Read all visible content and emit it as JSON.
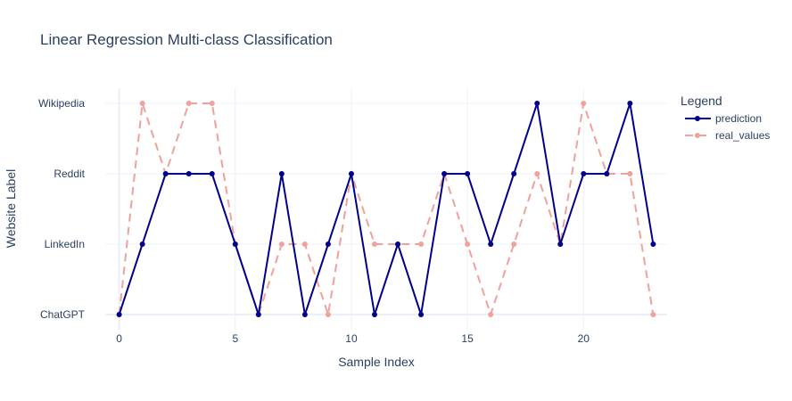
{
  "chart_data": {
    "type": "line",
    "title": "Linear Regression Multi-class Classification",
    "xlabel": "Sample Index",
    "ylabel": "Website Label",
    "x": [
      0,
      1,
      2,
      3,
      4,
      5,
      6,
      7,
      8,
      9,
      10,
      11,
      12,
      13,
      14,
      15,
      16,
      17,
      18,
      19,
      20,
      21,
      22,
      23
    ],
    "xlim": [
      -0.6,
      23.6
    ],
    "x_ticks": [
      0,
      5,
      10,
      15,
      20
    ],
    "categories_y": [
      "ChatGPT",
      "LinkedIn",
      "Reddit",
      "Wikipedia"
    ],
    "grid": true,
    "legend": {
      "title": "Legend",
      "position": "top-right"
    },
    "series": [
      {
        "name": "prediction",
        "color": "#00008b",
        "dash": "solid",
        "values": [
          0,
          1,
          2,
          2,
          2,
          1,
          0,
          2,
          0,
          1,
          2,
          0,
          1,
          0,
          2,
          2,
          1,
          2,
          3,
          1,
          2,
          2,
          3,
          1
        ]
      },
      {
        "name": "real_values",
        "color": "#f1a09a",
        "dash": "dash",
        "values": [
          0,
          3,
          2,
          3,
          3,
          1,
          0,
          1,
          1,
          0,
          2,
          1,
          1,
          1,
          2,
          1,
          0,
          1,
          2,
          1,
          3,
          2,
          2,
          0
        ]
      }
    ]
  }
}
